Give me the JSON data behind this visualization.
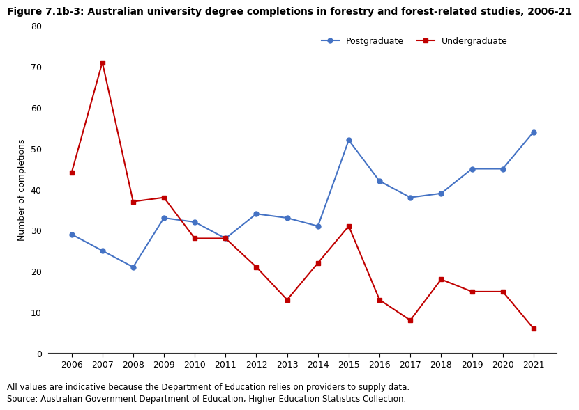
{
  "title": "Figure 7.1b-3: Australian university degree completions in forestry and forest-related studies, 2006-21",
  "years": [
    2006,
    2007,
    2008,
    2009,
    2010,
    2011,
    2012,
    2013,
    2014,
    2015,
    2016,
    2017,
    2018,
    2019,
    2020,
    2021
  ],
  "postgraduate": [
    29,
    25,
    21,
    33,
    32,
    28,
    34,
    33,
    31,
    52,
    42,
    38,
    39,
    45,
    45,
    54
  ],
  "undergraduate": [
    44,
    71,
    37,
    38,
    28,
    28,
    21,
    13,
    22,
    31,
    13,
    8,
    18,
    15,
    15,
    6
  ],
  "postgraduate_color": "#4472C4",
  "undergraduate_color": "#C00000",
  "ylabel": "Number of completions",
  "ylim": [
    0,
    80
  ],
  "yticks": [
    0,
    10,
    20,
    30,
    40,
    50,
    60,
    70,
    80
  ],
  "footnote1": "All values are indicative because the Department of Education relies on providers to supply data.",
  "footnote2": "Source: Australian Government Department of Education, Higher Education Statistics Collection.",
  "legend_postgraduate": "Postgraduate",
  "legend_undergraduate": "Undergraduate",
  "title_fontsize": 10,
  "axis_fontsize": 9,
  "tick_fontsize": 9,
  "footnote_fontsize": 8.5
}
